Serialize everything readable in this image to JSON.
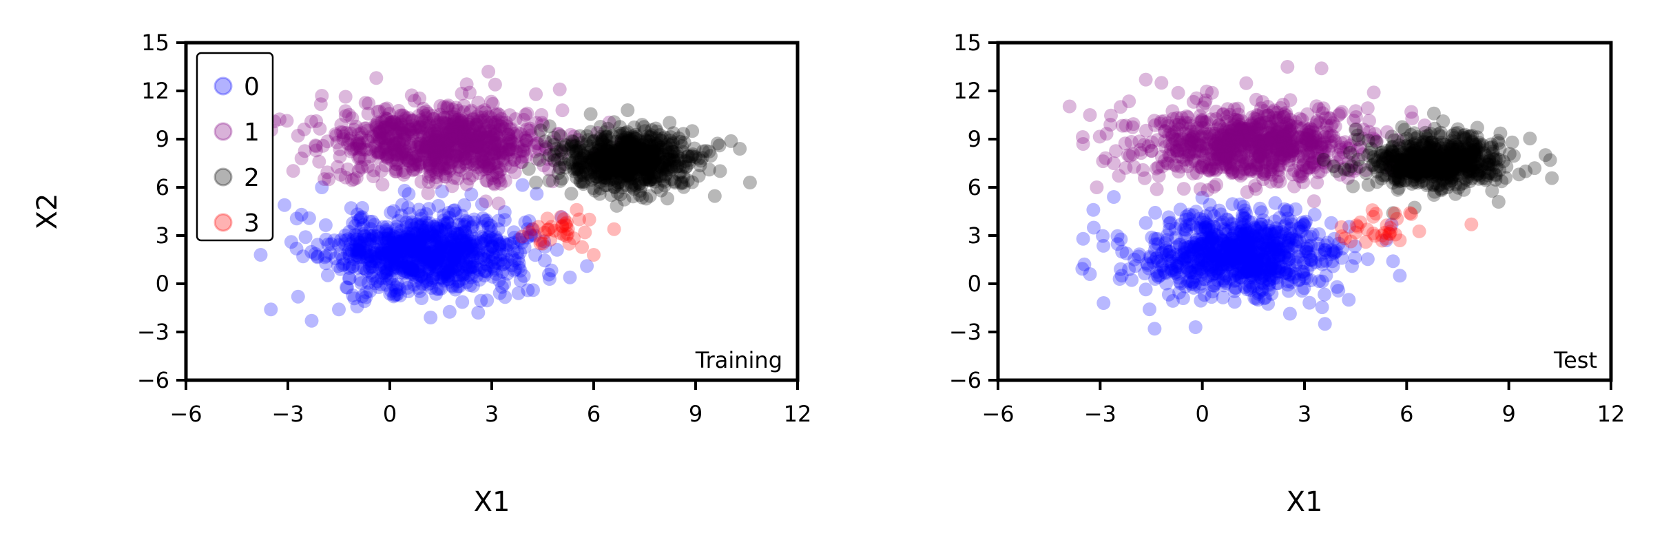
{
  "chart_data": [
    {
      "type": "scatter",
      "panel_label": "Training",
      "xlabel": "X1",
      "ylabel": "X2",
      "xlim": [
        -6,
        12
      ],
      "ylim": [
        -6,
        15
      ],
      "xticks": [
        -6,
        -3,
        0,
        3,
        6,
        9,
        12
      ],
      "yticks": [
        -6,
        -3,
        0,
        3,
        6,
        9,
        12,
        15
      ],
      "xtick_labels": [
        "−6",
        "−3",
        "0",
        "3",
        "6",
        "9",
        "12"
      ],
      "ytick_labels": [
        "−6",
        "−3",
        "0",
        "3",
        "6",
        "9",
        "12",
        "15"
      ],
      "legend": {
        "placement": "top-left",
        "entries": [
          "0",
          "1",
          "2",
          "3"
        ]
      },
      "series": [
        {
          "name": "0",
          "color": "#0000ff",
          "cluster": {
            "center": [
              1.0,
              2.0
            ],
            "spread": [
              1.4,
              1.2
            ],
            "count": 900,
            "seed": 11
          },
          "points": [
            [
              -3.5,
              -1.6
            ],
            [
              -2.3,
              -2.3
            ],
            [
              -3.8,
              1.8
            ],
            [
              -3.1,
              4.9
            ],
            [
              -2.6,
              4.3
            ],
            [
              -2.9,
              2.6
            ],
            [
              -2.7,
              -0.8
            ],
            [
              3.7,
              0.9
            ],
            [
              5.3,
              0.4
            ],
            [
              5.8,
              1.1
            ],
            [
              4.7,
              0.3
            ],
            [
              4.1,
              3.9
            ],
            [
              -1.5,
              -1.6
            ],
            [
              2.6,
              -1.8
            ],
            [
              1.2,
              -2.1
            ],
            [
              -2.0,
              6.0
            ]
          ]
        },
        {
          "name": "1",
          "color": "#800080",
          "cluster": {
            "center": [
              1.5,
              8.8
            ],
            "spread": [
              1.6,
              1.1
            ],
            "count": 900,
            "seed": 22
          },
          "points": [
            [
              -3.4,
              10.1
            ],
            [
              -4.2,
              7.6
            ],
            [
              -2.0,
              11.7
            ],
            [
              -0.4,
              12.8
            ],
            [
              2.9,
              13.2
            ],
            [
              4.3,
              11.8
            ],
            [
              5.0,
              12.1
            ],
            [
              -2.6,
              7.8
            ],
            [
              -1.8,
              6.5
            ],
            [
              3.1,
              12.4
            ]
          ]
        },
        {
          "name": "2",
          "color": "#000000",
          "cluster": {
            "center": [
              7.0,
              7.7
            ],
            "spread": [
              0.95,
              0.9
            ],
            "count": 700,
            "seed": 33
          },
          "points": [
            [
              10.6,
              6.3
            ],
            [
              10.3,
              8.4
            ],
            [
              9.7,
              8.6
            ],
            [
              9.4,
              7.1
            ],
            [
              8.9,
              9.5
            ],
            [
              7.0,
              10.8
            ],
            [
              4.7,
              9.8
            ],
            [
              4.3,
              6.3
            ],
            [
              5.0,
              7.2
            ]
          ]
        },
        {
          "name": "3",
          "color": "#ff0000",
          "cluster": {
            "center": [
              5.0,
              3.2
            ],
            "spread": [
              0.6,
              0.6
            ],
            "count": 30,
            "seed": 44
          },
          "points": [
            [
              6.0,
              1.8
            ],
            [
              6.6,
              3.4
            ],
            [
              4.1,
              3.2
            ],
            [
              5.5,
              4.6
            ],
            [
              4.5,
              2.5
            ]
          ]
        }
      ]
    },
    {
      "type": "scatter",
      "panel_label": "Test",
      "xlabel": "X1",
      "ylabel": "",
      "xlim": [
        -6,
        12
      ],
      "ylim": [
        -6,
        15
      ],
      "xticks": [
        -6,
        -3,
        0,
        3,
        6,
        9,
        12
      ],
      "yticks": [
        -6,
        -3,
        0,
        3,
        6,
        9,
        12,
        15
      ],
      "xtick_labels": [
        "−6",
        "−3",
        "0",
        "3",
        "6",
        "9",
        "12"
      ],
      "ytick_labels": [
        "−6",
        "−3",
        "0",
        "3",
        "6",
        "9",
        "12",
        "15"
      ],
      "series": [
        {
          "name": "0",
          "color": "#0000ff",
          "cluster": {
            "center": [
              1.0,
              1.8
            ],
            "spread": [
              1.4,
              1.2
            ],
            "count": 850,
            "seed": 55
          },
          "points": [
            [
              -3.5,
              2.8
            ],
            [
              -3.2,
              4.6
            ],
            [
              -3.3,
              0.6
            ],
            [
              -2.9,
              -1.2
            ],
            [
              -1.4,
              -2.8
            ],
            [
              -0.2,
              -2.7
            ],
            [
              3.6,
              -2.5
            ],
            [
              5.6,
              1.4
            ],
            [
              5.8,
              0.5
            ],
            [
              5.4,
              2.7
            ],
            [
              4.3,
              -1.0
            ],
            [
              -2.6,
              5.4
            ]
          ]
        },
        {
          "name": "1",
          "color": "#800080",
          "cluster": {
            "center": [
              1.5,
              8.7
            ],
            "spread": [
              1.6,
              1.1
            ],
            "count": 850,
            "seed": 66
          },
          "points": [
            [
              1.2,
              14.7
            ],
            [
              2.5,
              13.5
            ],
            [
              3.5,
              13.4
            ],
            [
              -3.5,
              8.7
            ],
            [
              -3.3,
              10.5
            ],
            [
              -2.4,
              11.0
            ],
            [
              -2.7,
              9.9
            ],
            [
              -1.2,
              12.5
            ],
            [
              -3.1,
              6.0
            ],
            [
              -2.6,
              7.5
            ]
          ]
        },
        {
          "name": "2",
          "color": "#000000",
          "cluster": {
            "center": [
              6.9,
              7.6
            ],
            "spread": [
              0.95,
              0.85
            ],
            "count": 650,
            "seed": 77
          },
          "points": [
            [
              9.1,
              8.8
            ],
            [
              9.3,
              6.8
            ],
            [
              8.7,
              5.1
            ],
            [
              6.8,
              10.6
            ],
            [
              5.6,
              4.4
            ],
            [
              4.5,
              9.6
            ]
          ]
        },
        {
          "name": "3",
          "color": "#ff0000",
          "cluster": {
            "center": [
              5.2,
              3.5
            ],
            "spread": [
              0.55,
              0.55
            ],
            "count": 28,
            "seed": 88
          },
          "points": [
            [
              7.9,
              3.7
            ],
            [
              5.8,
              2.7
            ],
            [
              4.8,
              2.6
            ],
            [
              6.1,
              4.4
            ]
          ]
        }
      ]
    }
  ]
}
